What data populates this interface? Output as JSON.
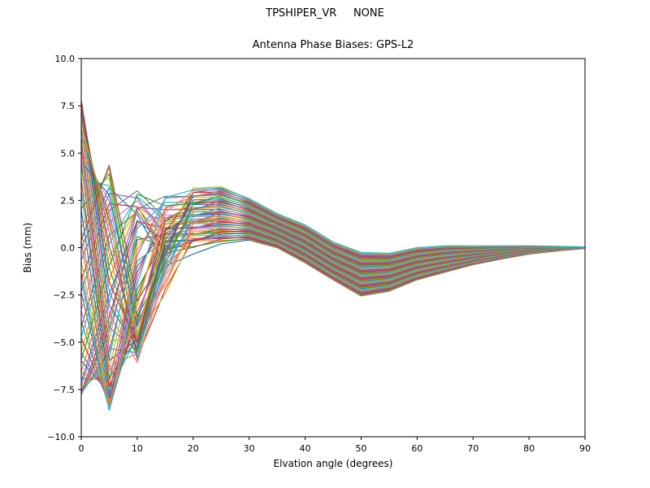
{
  "figure": {
    "suptitle": "TPSHIPER_VR     NONE"
  },
  "chart_data": {
    "type": "line",
    "suptitle": "TPSHIPER_VR     NONE",
    "title": "Antenna Phase Biases: GPS-L2",
    "xlabel": "Elvation angle (degrees)",
    "ylabel": "Bias (mm)",
    "xlim": [
      0,
      90
    ],
    "ylim": [
      -10,
      10
    ],
    "xticks": [
      0,
      10,
      20,
      30,
      40,
      50,
      60,
      70,
      80,
      90
    ],
    "xtick_labels": [
      "0",
      "10",
      "20",
      "30",
      "40",
      "50",
      "60",
      "70",
      "80",
      "90"
    ],
    "yticks": [
      -10.0,
      -7.5,
      -5.0,
      -2.5,
      0.0,
      2.5,
      5.0,
      7.5,
      10.0
    ],
    "ytick_labels": [
      "−10.0",
      "−7.5",
      "−5.0",
      "−2.5",
      "0.0",
      "2.5",
      "5.0",
      "7.5",
      "10.0"
    ],
    "grid": false,
    "legend": "none",
    "description": "Family of ~60 unlabeled antenna phase-bias curves, one per calibration set; they spread between -8 and +7.6 mm at 0 deg elevation, pinch to a minimum near -8.6 mm around 5 deg, cross and converge, bump to about +0.2..+3.4 mm near 25-30 deg, dip to about -2.6..-0.3 mm near 50 deg, then all converge to 0 mm at 90 deg",
    "x": [
      0,
      5,
      10,
      15,
      20,
      25,
      30,
      35,
      40,
      45,
      50,
      55,
      60,
      65,
      70,
      75,
      80,
      85,
      90
    ],
    "band_center": [
      0.0,
      -2.0,
      -1.5,
      -0.3,
      1.3,
      1.8,
      1.5,
      0.9,
      0.2,
      -0.7,
      -1.4,
      -1.3,
      -0.85,
      -0.6,
      -0.4,
      -0.25,
      -0.12,
      -0.05,
      0.0
    ],
    "band_halfwidth": [
      7.8,
      6.6,
      4.8,
      3.2,
      1.9,
      1.6,
      1.1,
      0.9,
      1.0,
      1.0,
      1.15,
      1.0,
      0.85,
      0.7,
      0.5,
      0.35,
      0.22,
      0.12,
      0.04
    ],
    "early_mix": [
      1,
      1,
      0.85,
      0.55,
      0.25,
      0.1,
      0,
      0,
      0,
      0,
      0,
      0,
      0,
      0,
      0,
      0,
      0,
      0,
      0
    ],
    "n_series": 60,
    "line_width": 1.2,
    "palette": [
      "#1f77b4",
      "#ff7f0e",
      "#2ca02c",
      "#d62728",
      "#9467bd",
      "#8c564b",
      "#e377c2",
      "#7f7f7f",
      "#bcbd22",
      "#17becf"
    ],
    "axis_color": "#000000",
    "background_color": "#ffffff"
  }
}
